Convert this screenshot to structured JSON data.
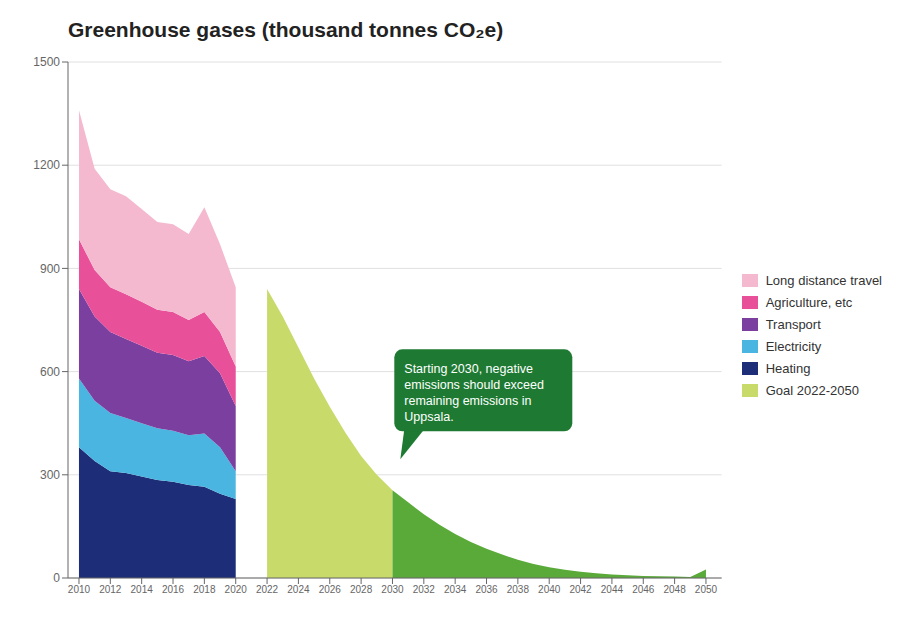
{
  "chart_data": {
    "type": "area",
    "title": "Greenhouse gases (thousand tonnes CO₂e)",
    "stacked": true,
    "grid": true,
    "legend": "right",
    "xlim": [
      2009.3,
      2051.0
    ],
    "xticks": [
      2010,
      2012,
      2014,
      2016,
      2018,
      2020,
      2022,
      2024,
      2026,
      2028,
      2030,
      2032,
      2034,
      2036,
      2038,
      2040,
      2042,
      2044,
      2046,
      2048,
      2050
    ],
    "ylim": [
      0,
      1500
    ],
    "yticks": [
      0,
      300,
      600,
      900,
      1200,
      1500
    ],
    "series": [
      {
        "name": "Heating",
        "color": "#1e2d78",
        "x": [
          2010,
          2011,
          2012,
          2013,
          2014,
          2015,
          2016,
          2017,
          2018,
          2019,
          2020
        ],
        "values": [
          380,
          340,
          310,
          305,
          295,
          285,
          280,
          270,
          265,
          245,
          230
        ]
      },
      {
        "name": "Electricity",
        "color": "#4ab5e0",
        "x": [
          2010,
          2011,
          2012,
          2013,
          2014,
          2015,
          2016,
          2017,
          2018,
          2019,
          2020
        ],
        "values": [
          200,
          175,
          170,
          160,
          155,
          150,
          148,
          145,
          155,
          135,
          80
        ]
      },
      {
        "name": "Transport",
        "color": "#7b3fa0",
        "x": [
          2010,
          2011,
          2012,
          2013,
          2014,
          2015,
          2016,
          2017,
          2018,
          2019,
          2020
        ],
        "values": [
          260,
          245,
          235,
          230,
          225,
          220,
          220,
          215,
          225,
          215,
          190
        ]
      },
      {
        "name": "Agriculture, etc",
        "color": "#e8509a",
        "x": [
          2010,
          2011,
          2012,
          2013,
          2014,
          2015,
          2016,
          2017,
          2018,
          2019,
          2020
        ],
        "values": [
          145,
          135,
          130,
          130,
          128,
          125,
          125,
          120,
          128,
          120,
          115
        ]
      },
      {
        "name": "Long distance travel",
        "color": "#f4b8cf",
        "x": [
          2010,
          2011,
          2012,
          2013,
          2014,
          2015,
          2016,
          2017,
          2018,
          2019,
          2020
        ],
        "values": [
          375,
          295,
          285,
          285,
          270,
          255,
          255,
          250,
          305,
          255,
          230
        ]
      },
      {
        "name": "Goal 2022-2050",
        "stacked": false,
        "x": [
          2022,
          2023,
          2024,
          2025,
          2026,
          2027,
          2028,
          2029,
          2030,
          2031,
          2032,
          2033,
          2034,
          2035,
          2036,
          2037,
          2038,
          2039,
          2040,
          2041,
          2042,
          2043,
          2044,
          2045,
          2046,
          2047,
          2048,
          2049,
          2050
        ],
        "values": [
          840,
          760,
          670,
          580,
          498,
          422,
          355,
          300,
          255,
          220,
          185,
          155,
          128,
          105,
          85,
          68,
          53,
          41,
          31,
          24,
          18,
          14,
          10,
          8,
          6,
          5,
          4,
          3,
          25
        ],
        "colors": [
          "#c8db6a",
          "#c8db6a",
          "#c8db6a",
          "#c8db6a",
          "#c8db6a",
          "#c8db6a",
          "#c8db6a",
          "#c8db6a",
          "#c8db6a",
          "#5aaa3a",
          "#5aaa3a",
          "#5aaa3a",
          "#5aaa3a",
          "#5aaa3a",
          "#5aaa3a",
          "#5aaa3a",
          "#5aaa3a",
          "#5aaa3a",
          "#5aaa3a",
          "#5aaa3a",
          "#5aaa3a",
          "#5aaa3a",
          "#5aaa3a",
          "#5aaa3a",
          "#5aaa3a",
          "#5aaa3a",
          "#5aaa3a",
          "#5aaa3a",
          "#5aaa3a"
        ]
      }
    ],
    "annotations": [
      {
        "text": "Starting 2030, negative\nemissions should exceed\nremaining emissions in\nUppsala.",
        "x": 2030.5,
        "y": 345,
        "color": "#1e7a32"
      }
    ]
  }
}
